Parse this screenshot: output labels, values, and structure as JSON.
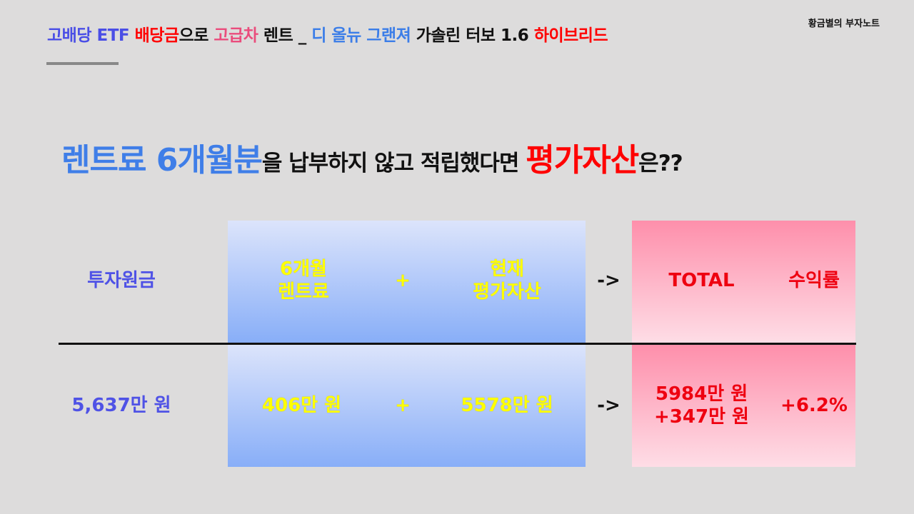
{
  "header": {
    "title_segments": [
      {
        "text": "고배당 ETF ",
        "color": "#4a4ee6"
      },
      {
        "text": "배당금",
        "color": "#ff0000"
      },
      {
        "text": "으로 ",
        "color": "#111111"
      },
      {
        "text": "고급차",
        "color": "#ea4c7c"
      },
      {
        "text": " 렌트 _ ",
        "color": "#111111"
      },
      {
        "text": "디 올뉴 그랜져",
        "color": "#3b7de8"
      },
      {
        "text": " 가솔린 터보 1.6 ",
        "color": "#111111"
      },
      {
        "text": "하이브리드",
        "color": "#ff0000"
      }
    ],
    "brand": "황금별의 부자노트"
  },
  "headline": {
    "part1": "렌트료 6개월분",
    "part2": "을 납부하지 않고 적립했다면 ",
    "part3": "평가자산",
    "part4": "은??"
  },
  "table": {
    "header": {
      "principal": "투자원금",
      "rent_line1": "6개월",
      "rent_line2": "렌트료",
      "plus": "+",
      "asset_line1": "현재",
      "asset_line2": "평가자산",
      "arrow": "->",
      "total": "TOTAL",
      "return": "수익률"
    },
    "values": {
      "principal": "5,637만 원",
      "rent": "406만 원",
      "plus": "+",
      "asset": "5578만 원",
      "arrow": "->",
      "total_line1": "5984만 원",
      "total_line2": "+347만 원",
      "return": "+6.2%"
    }
  }
}
